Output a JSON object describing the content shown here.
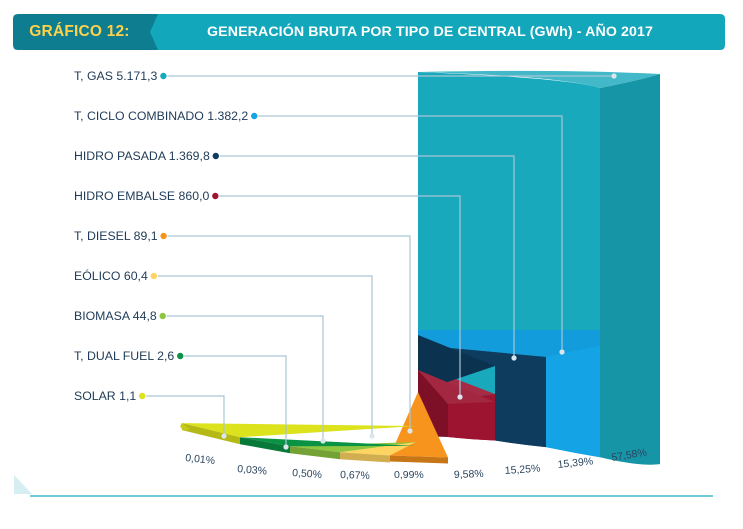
{
  "header": {
    "figure_label": "GRÁFICO 12:",
    "title": "GENERACIÓN BRUTA POR TIPO DE CENTRAL (GWh) - AÑO 2017"
  },
  "colors": {
    "title_bar": "#12a7ba",
    "title_bar_dark": "#0f8fa2",
    "label_bg": "#0e7d90",
    "label_text": "#ffd24a"
  },
  "chart_data": {
    "type": "bar",
    "title": "GENERACIÓN BRUTA POR TIPO DE CENTRAL (GWh) - AÑO 2017",
    "unit": "GWh",
    "categories": [
      "T, GAS",
      "T, CICLO COMBINADO",
      "HIDRO PASADA",
      "HIDRO EMBALSE",
      "T, DIESEL",
      "EÓLICO",
      "BIOMASA",
      "T, DUAL FUEL",
      "SOLAR"
    ],
    "values": [
      5171.3,
      1382.2,
      1369.8,
      860.0,
      89.1,
      60.4,
      44.8,
      2.6,
      1.1
    ],
    "value_labels": [
      "5.171,3",
      "1.382,2",
      "1.369,8",
      "860,0",
      "89,1",
      "60,4",
      "44,8",
      "2,6",
      "1,1"
    ],
    "percentages": [
      "57,58%",
      "15,39%",
      "15,25%",
      "9,58%",
      "0,99%",
      "0,67%",
      "0,50%",
      "0,03%",
      "0,01%"
    ],
    "colors": [
      "#19a9bd",
      "#14a4e6",
      "#0d3c5e",
      "#9c1430",
      "#f7941d",
      "#ffd561",
      "#8dc63f",
      "#0a9345",
      "#dce21b"
    ]
  }
}
